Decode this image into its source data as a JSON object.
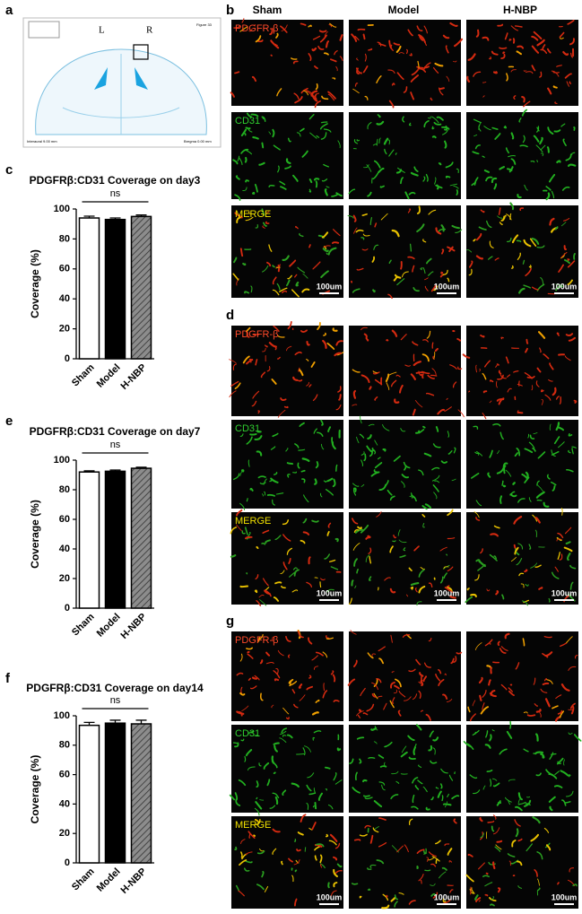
{
  "atlas": {
    "panel": "a",
    "labels": [
      "L",
      "R"
    ],
    "figure": "Figure 33",
    "interaural": "Interaural 9.00 mm",
    "bregma": "Bregma 0.00 mm"
  },
  "image_grids": [
    {
      "panel": "b",
      "columns": [
        "Sham",
        "Model",
        "H-NBP"
      ],
      "rows": [
        "PDGFR-β",
        "CD31",
        "MERGE"
      ],
      "scale_bar": "100um"
    },
    {
      "panel": "d",
      "rows": [
        "PDGFR-β",
        "CD31",
        "MERGE"
      ],
      "scale_bar": "100um"
    },
    {
      "panel": "g",
      "rows": [
        "PDGFR-β",
        "CD31",
        "MERGE"
      ],
      "scale_bar": "100um"
    }
  ],
  "chart_data": [
    {
      "type": "bar",
      "panel": "c",
      "title": "PDGFRβ:CD31 Coverage on day3",
      "ylabel": "Coverage (%)",
      "annotation": "ns",
      "categories": [
        "Sham",
        "Model",
        "H-NBP"
      ],
      "values": [
        94,
        93,
        95
      ],
      "errors": [
        1.2,
        1.0,
        1.0
      ],
      "colors": [
        "#ffffff",
        "#000000",
        "#8c8c8c"
      ],
      "hatched": [
        false,
        false,
        true
      ],
      "ylim": [
        0,
        100
      ],
      "yticks": [
        0,
        20,
        40,
        60,
        80,
        100
      ]
    },
    {
      "type": "bar",
      "panel": "e",
      "title": "PDGFRβ:CD31 Coverage on day7",
      "ylabel": "Coverage (%)",
      "annotation": "ns",
      "categories": [
        "Sham",
        "Model",
        "H-NBP"
      ],
      "values": [
        92,
        92.5,
        94.5
      ],
      "errors": [
        0.8,
        0.8,
        0.7
      ],
      "colors": [
        "#ffffff",
        "#000000",
        "#8c8c8c"
      ],
      "hatched": [
        false,
        false,
        true
      ],
      "ylim": [
        0,
        100
      ],
      "yticks": [
        0,
        20,
        40,
        60,
        80,
        100
      ]
    },
    {
      "type": "bar",
      "panel": "f",
      "title": "PDGFRβ:CD31 Coverage on day14",
      "ylabel": "Coverage (%)",
      "annotation": "ns",
      "categories": [
        "Sham",
        "Model",
        "H-NBP"
      ],
      "values": [
        93.5,
        95,
        94.5
      ],
      "errors": [
        2.0,
        2.0,
        2.5
      ],
      "colors": [
        "#ffffff",
        "#000000",
        "#8c8c8c"
      ],
      "hatched": [
        false,
        false,
        true
      ],
      "ylim": [
        0,
        100
      ],
      "yticks": [
        0,
        20,
        40,
        60,
        80,
        100
      ]
    }
  ]
}
